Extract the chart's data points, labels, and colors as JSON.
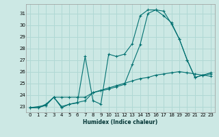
{
  "xlabel": "Humidex (Indice chaleur)",
  "bg_color": "#cce8e4",
  "grid_color": "#b0d8d4",
  "line_color": "#007070",
  "xlim": [
    -0.5,
    23.5
  ],
  "ylim": [
    22.5,
    31.8
  ],
  "yticks": [
    23,
    24,
    25,
    26,
    27,
    28,
    29,
    30,
    31
  ],
  "xticks": [
    0,
    1,
    2,
    3,
    4,
    5,
    6,
    7,
    8,
    9,
    10,
    11,
    12,
    13,
    14,
    15,
    16,
    17,
    18,
    19,
    20,
    21,
    22,
    23
  ],
  "series": [
    {
      "x": [
        0,
        1,
        2,
        3,
        4,
        5,
        6,
        7,
        8,
        9,
        10,
        11,
        12,
        13,
        14,
        15,
        16,
        17,
        18,
        19,
        20,
        21,
        22,
        23
      ],
      "y": [
        22.9,
        22.9,
        23.2,
        23.8,
        23.0,
        23.2,
        23.3,
        27.3,
        23.5,
        23.2,
        27.5,
        27.3,
        27.5,
        28.4,
        30.8,
        31.3,
        31.3,
        30.8,
        30.2,
        28.8,
        27.0,
        25.5,
        25.7,
        25.8
      ]
    },
    {
      "x": [
        0,
        1,
        2,
        3,
        4,
        5,
        6,
        7,
        8,
        9,
        10,
        11,
        12,
        13,
        14,
        15,
        16,
        17,
        18,
        19,
        20,
        21,
        22,
        23
      ],
      "y": [
        22.9,
        22.9,
        23.1,
        23.8,
        23.8,
        23.8,
        23.8,
        23.8,
        24.2,
        24.4,
        24.6,
        24.8,
        25.0,
        25.2,
        25.4,
        25.5,
        25.7,
        25.8,
        25.9,
        26.0,
        25.9,
        25.8,
        25.7,
        25.6
      ]
    },
    {
      "x": [
        0,
        2,
        3,
        4,
        5,
        7,
        8,
        10,
        11,
        12,
        13,
        14,
        15,
        16,
        17,
        18,
        19,
        20,
        21,
        22,
        23
      ],
      "y": [
        22.9,
        23.1,
        23.8,
        22.9,
        23.2,
        23.5,
        24.2,
        24.5,
        24.7,
        24.9,
        26.6,
        28.3,
        31.0,
        31.3,
        31.2,
        30.1,
        28.8,
        27.0,
        25.5,
        25.7,
        25.9
      ]
    }
  ]
}
